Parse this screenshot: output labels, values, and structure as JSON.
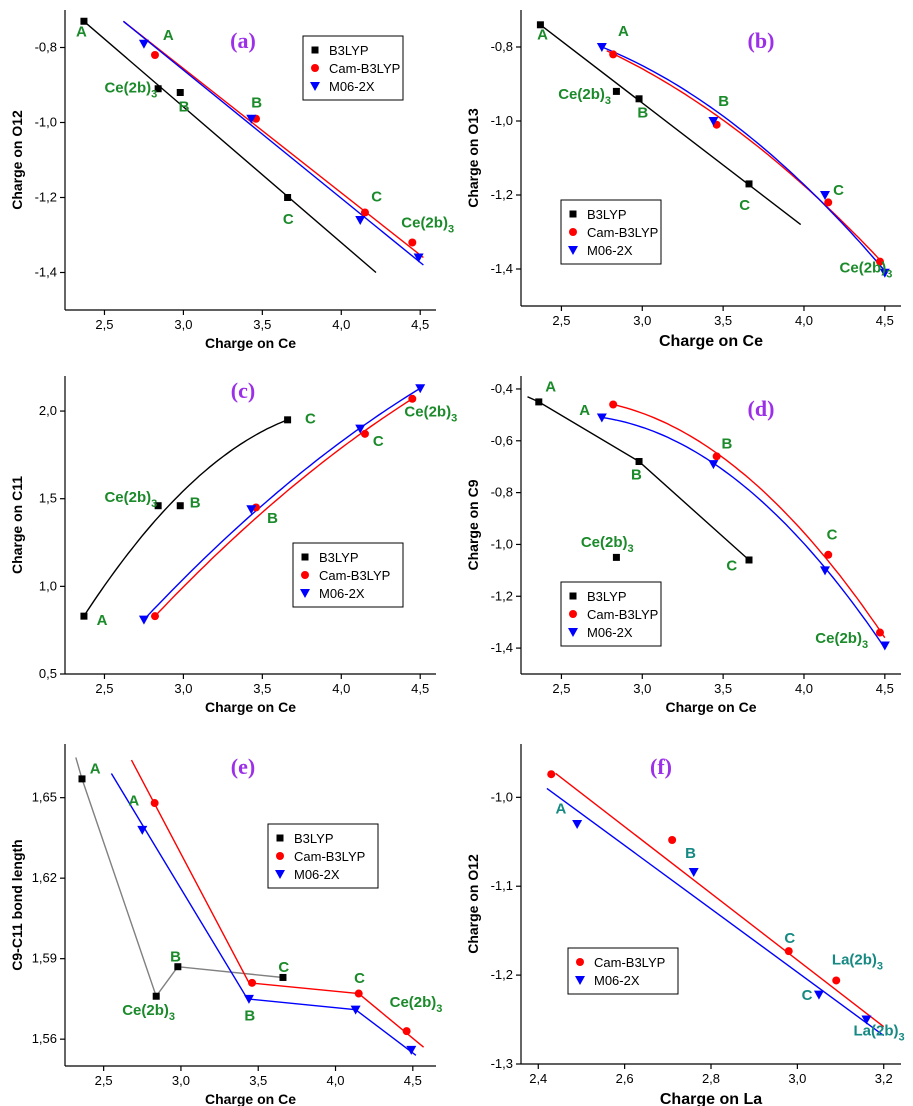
{
  "colors": {
    "B3LYP": "#000000",
    "Cam-B3LYP": "#ff0000",
    "M06-2X": "#0000ff",
    "tag": "#9b30e8",
    "ann": "#1b8a2a"
  },
  "chart_data": [
    {
      "type": "scatter",
      "panel": "(a)",
      "xlabel": "Charge on Ce",
      "ylabel": "Charge on O12",
      "xlim": [
        2.25,
        4.6
      ],
      "ylim": [
        -1.5,
        -0.7
      ],
      "xticks": [
        "2,5",
        "3,0",
        "3,5",
        "4,0",
        "4,5"
      ],
      "xtick_values": [
        2.5,
        3.0,
        3.5,
        4.0,
        4.5
      ],
      "yticks": [
        "-0,8",
        "-1,0",
        "-1,2",
        "-1,4"
      ],
      "ytick_values": [
        -0.8,
        -1.0,
        -1.2,
        -1.4
      ],
      "legend": [
        "B3LYP",
        "Cam-B3LYP",
        "M06-2X"
      ],
      "series": [
        {
          "name": "B3LYP",
          "marker": "square",
          "x": [
            2.37,
            2.84,
            2.98,
            3.66
          ],
          "y": [
            -0.73,
            -0.91,
            -0.92,
            -1.2
          ],
          "fit": {
            "kind": "line",
            "x": [
              2.37,
              4.22
            ],
            "y": [
              -0.73,
              -1.4
            ]
          }
        },
        {
          "name": "Cam-B3LYP",
          "marker": "circle",
          "x": [
            2.82,
            3.46,
            4.15,
            4.45
          ],
          "y": [
            -0.82,
            -0.99,
            -1.24,
            -1.32
          ],
          "fit": {
            "kind": "line",
            "x": [
              2.62,
              4.52
            ],
            "y": [
              -0.73,
              -1.36
            ]
          }
        },
        {
          "name": "M06-2X",
          "marker": "triangle",
          "x": [
            2.75,
            3.43,
            4.12,
            4.49
          ],
          "y": [
            -0.79,
            -0.99,
            -1.26,
            -1.36
          ],
          "fit": {
            "kind": "line",
            "x": [
              2.62,
              4.52
            ],
            "y": [
              -0.73,
              -1.38
            ]
          }
        }
      ],
      "annotations": [
        {
          "text": "A",
          "x": 2.32,
          "y": -0.77
        },
        {
          "text": "A",
          "x": 2.87,
          "y": -0.78
        },
        {
          "text": "Ce(2b)",
          "sub": "3",
          "x": 2.5,
          "y": -0.92
        },
        {
          "text": "B",
          "x": 2.97,
          "y": -0.97
        },
        {
          "text": "B",
          "x": 3.43,
          "y": -0.96
        },
        {
          "text": "C",
          "x": 3.63,
          "y": -1.27
        },
        {
          "text": "C",
          "x": 4.19,
          "y": -1.21
        },
        {
          "text": "Ce(2b)",
          "sub": "3",
          "x": 4.38,
          "y": -1.28
        }
      ]
    },
    {
      "type": "scatter",
      "panel": "(b)",
      "xlabel": "Charge on Ce",
      "ylabel": "Charge on O13",
      "xlim": [
        2.25,
        4.6
      ],
      "ylim": [
        -1.5,
        -0.7
      ],
      "xticks": [
        "2,5",
        "3,0",
        "3,5",
        "4,0",
        "4,5"
      ],
      "xtick_values": [
        2.5,
        3.0,
        3.5,
        4.0,
        4.5
      ],
      "yticks": [
        "-0,8",
        "-1,0",
        "-1,2",
        "-1,4"
      ],
      "ytick_values": [
        -0.8,
        -1.0,
        -1.2,
        -1.4
      ],
      "legend": [
        "B3LYP",
        "Cam-B3LYP",
        "M06-2X"
      ],
      "series": [
        {
          "name": "B3LYP",
          "marker": "square",
          "x": [
            2.37,
            2.84,
            2.98,
            3.66
          ],
          "y": [
            -0.74,
            -0.92,
            -0.94,
            -1.17
          ],
          "fit": {
            "kind": "line",
            "x": [
              2.37,
              3.98
            ],
            "y": [
              -0.74,
              -1.28
            ]
          }
        },
        {
          "name": "Cam-B3LYP",
          "marker": "circle",
          "x": [
            2.82,
            3.46,
            4.15,
            4.47
          ],
          "y": [
            -0.82,
            -1.01,
            -1.22,
            -1.38
          ],
          "fit": {
            "kind": "quad",
            "x": [
              2.78,
              3.6,
              4.48
            ],
            "y": [
              -0.81,
              -1.03,
              -1.38
            ]
          }
        },
        {
          "name": "M06-2X",
          "marker": "triangle",
          "x": [
            2.75,
            3.44,
            4.13,
            4.5
          ],
          "y": [
            -0.8,
            -1.0,
            -1.2,
            -1.41
          ],
          "fit": {
            "kind": "quad",
            "x": [
              2.75,
              3.6,
              4.49
            ],
            "y": [
              -0.8,
              -1.02,
              -1.4
            ]
          }
        }
      ],
      "annotations": [
        {
          "text": "A",
          "x": 2.35,
          "y": -0.78
        },
        {
          "text": "A",
          "x": 2.85,
          "y": -0.77
        },
        {
          "text": "Ce(2b)",
          "sub": "3",
          "x": 2.48,
          "y": -0.94
        },
        {
          "text": "B",
          "x": 2.97,
          "y": -0.99
        },
        {
          "text": "B",
          "x": 3.47,
          "y": -0.96
        },
        {
          "text": "C",
          "x": 3.6,
          "y": -1.24
        },
        {
          "text": "C",
          "x": 4.18,
          "y": -1.2
        },
        {
          "text": "Ce(2b)",
          "sub": "3",
          "x": 4.22,
          "y": -1.41
        }
      ]
    },
    {
      "type": "scatter",
      "panel": "(c)",
      "xlabel": "Charge on Ce",
      "ylabel": "Charge on C11",
      "xlim": [
        2.25,
        4.6
      ],
      "ylim": [
        0.5,
        2.2
      ],
      "xticks": [
        "2,5",
        "3,0",
        "3,5",
        "4,0",
        "4,5"
      ],
      "xtick_values": [
        2.5,
        3.0,
        3.5,
        4.0,
        4.5
      ],
      "yticks": [
        "0,5",
        "1,0",
        "1,5",
        "2,0"
      ],
      "ytick_values": [
        0.5,
        1.0,
        1.5,
        2.0
      ],
      "legend": [
        "B3LYP",
        "Cam-B3LYP",
        "M06-2X"
      ],
      "series": [
        {
          "name": "B3LYP",
          "marker": "square",
          "x": [
            2.37,
            2.84,
            2.98,
            3.66
          ],
          "y": [
            0.83,
            1.46,
            1.46,
            1.95
          ],
          "fit": {
            "kind": "quad",
            "x": [
              2.37,
              2.95,
              3.66
            ],
            "y": [
              0.83,
              1.5,
              1.95
            ]
          }
        },
        {
          "name": "Cam-B3LYP",
          "marker": "circle",
          "x": [
            2.82,
            3.46,
            4.15,
            4.45
          ],
          "y": [
            0.83,
            1.45,
            1.87,
            2.07
          ],
          "fit": {
            "kind": "quad",
            "x": [
              2.82,
              3.6,
              4.45
            ],
            "y": [
              0.83,
              1.5,
              2.07
            ]
          }
        },
        {
          "name": "M06-2X",
          "marker": "triangle",
          "x": [
            2.75,
            3.43,
            4.12,
            4.5
          ],
          "y": [
            0.81,
            1.44,
            1.9,
            2.13
          ],
          "fit": {
            "kind": "quad",
            "x": [
              2.75,
              3.6,
              4.5
            ],
            "y": [
              0.81,
              1.54,
              2.13
            ]
          }
        }
      ],
      "annotations": [
        {
          "text": "A",
          "x": 2.45,
          "y": 0.78
        },
        {
          "text": "Ce(2b)",
          "sub": "3",
          "x": 2.5,
          "y": 1.48
        },
        {
          "text": "B",
          "x": 3.04,
          "y": 1.45
        },
        {
          "text": "B",
          "x": 3.53,
          "y": 1.36
        },
        {
          "text": "C",
          "x": 3.77,
          "y": 1.93
        },
        {
          "text": "C",
          "x": 4.2,
          "y": 1.8
        },
        {
          "text": "Ce(2b)",
          "sub": "3",
          "x": 4.4,
          "y": 1.97
        }
      ]
    },
    {
      "type": "scatter",
      "panel": "(d)",
      "xlabel": "Charge on Ce",
      "ylabel": "Charge on C9",
      "xlim": [
        2.25,
        4.6
      ],
      "ylim": [
        -1.5,
        -0.35
      ],
      "xticks": [
        "2,5",
        "3,0",
        "3,5",
        "4,0",
        "4,5"
      ],
      "xtick_values": [
        2.5,
        3.0,
        3.5,
        4.0,
        4.5
      ],
      "yticks": [
        "-0,4",
        "-0,6",
        "-0,8",
        "-1,0",
        "-1,2",
        "-1,4"
      ],
      "ytick_values": [
        -0.4,
        -0.6,
        -0.8,
        -1.0,
        -1.2,
        -1.4
      ],
      "legend": [
        "B3LYP",
        "Cam-B3LYP",
        "M06-2X"
      ],
      "series": [
        {
          "name": "B3LYP",
          "marker": "square",
          "x": [
            2.36,
            2.98,
            3.66
          ],
          "y": [
            -0.45,
            -0.68,
            -1.06
          ],
          "fit": {
            "kind": "poly",
            "x": [
              2.29,
              2.36,
              2.98,
              3.66
            ],
            "y": [
              -0.43,
              -0.45,
              -0.68,
              -1.06
            ]
          }
        },
        {
          "name": "Cam-B3LYP",
          "marker": "circle",
          "x": [
            2.82,
            3.46,
            4.15,
            4.47
          ],
          "y": [
            -0.46,
            -0.66,
            -1.04,
            -1.34
          ],
          "fit": {
            "kind": "quad",
            "x": [
              2.82,
              3.65,
              4.5
            ],
            "y": [
              -0.46,
              -0.74,
              -1.36
            ]
          }
        },
        {
          "name": "M06-2X",
          "marker": "triangle",
          "x": [
            2.75,
            3.44,
            4.13,
            4.5
          ],
          "y": [
            -0.51,
            -0.69,
            -1.1,
            -1.39
          ],
          "fit": {
            "kind": "quad",
            "x": [
              2.75,
              3.6,
              4.5
            ],
            "y": [
              -0.51,
              -0.76,
              -1.4
            ]
          }
        },
        {
          "name": "B3LYP",
          "marker": "square",
          "x": [
            2.84
          ],
          "y": [
            -1.05
          ],
          "fit": null
        }
      ],
      "annotations": [
        {
          "text": "A",
          "x": 2.4,
          "y": -0.41
        },
        {
          "text": "A",
          "x": 2.61,
          "y": -0.5
        },
        {
          "text": "B",
          "x": 2.93,
          "y": -0.75
        },
        {
          "text": "B",
          "x": 3.49,
          "y": -0.63
        },
        {
          "text": "Ce(2b)",
          "sub": "3",
          "x": 2.62,
          "y": -1.01
        },
        {
          "text": "C",
          "x": 3.52,
          "y": -1.1
        },
        {
          "text": "C",
          "x": 4.14,
          "y": -0.98
        },
        {
          "text": "Ce(2b)",
          "sub": "3",
          "x": 4.07,
          "y": -1.38
        }
      ]
    },
    {
      "type": "line",
      "panel": "(e)",
      "xlabel": "Charge on Ce",
      "ylabel": "C9-C11 bond length",
      "xlim": [
        2.25,
        4.65
      ],
      "ylim": [
        1.55,
        1.67
      ],
      "xticks": [
        "2,5",
        "3,0",
        "3,5",
        "4,0",
        "4,5"
      ],
      "xtick_values": [
        2.5,
        3.0,
        3.5,
        4.0,
        4.5
      ],
      "yticks": [
        "1,56",
        "1,59",
        "1,62",
        "1,65"
      ],
      "ytick_values": [
        1.56,
        1.59,
        1.62,
        1.65
      ],
      "legend": [
        "B3LYP",
        "Cam-B3LYP",
        "M06-2X"
      ],
      "series": [
        {
          "name": "B3LYP",
          "marker": "square",
          "x": [
            2.36,
            2.84,
            2.98,
            3.66
          ],
          "y": [
            1.657,
            1.576,
            1.587,
            1.583
          ],
          "fit": {
            "kind": "poly",
            "x": [
              2.32,
              2.36,
              2.84,
              2.98,
              3.66
            ],
            "y": [
              1.665,
              1.657,
              1.576,
              1.587,
              1.583
            ],
            "color": "#808080"
          }
        },
        {
          "name": "Cam-B3LYP",
          "marker": "circle",
          "x": [
            2.83,
            3.46,
            4.15,
            4.46
          ],
          "y": [
            1.648,
            1.581,
            1.577,
            1.563
          ],
          "fit": {
            "kind": "poly",
            "x": [
              2.68,
              3.44,
              4.15,
              4.57
            ],
            "y": [
              1.664,
              1.581,
              1.577,
              1.557
            ]
          }
        },
        {
          "name": "M06-2X",
          "marker": "triangle",
          "x": [
            2.75,
            3.44,
            4.13,
            4.49
          ],
          "y": [
            1.638,
            1.575,
            1.571,
            1.556
          ],
          "fit": {
            "kind": "poly",
            "x": [
              2.55,
              3.43,
              4.13,
              4.52
            ],
            "y": [
              1.659,
              1.575,
              1.571,
              1.554
            ]
          }
        }
      ],
      "annotations": [
        {
          "text": "A",
          "x": 2.41,
          "y": 1.659
        },
        {
          "text": "A",
          "x": 2.66,
          "y": 1.647
        },
        {
          "text": "B",
          "x": 2.93,
          "y": 1.589
        },
        {
          "text": "Ce(2b)",
          "sub": "3",
          "x": 2.62,
          "y": 1.569
        },
        {
          "text": "B",
          "x": 3.41,
          "y": 1.567
        },
        {
          "text": "C",
          "x": 3.63,
          "y": 1.585
        },
        {
          "text": "C",
          "x": 4.12,
          "y": 1.581
        },
        {
          "text": "Ce(2b)",
          "sub": "3",
          "x": 4.35,
          "y": 1.572
        }
      ]
    },
    {
      "type": "scatter",
      "panel": "(f)",
      "xlabel": "Charge on La",
      "ylabel": "Charge on O12",
      "xlim": [
        2.36,
        3.24
      ],
      "ylim": [
        -1.3,
        -0.94
      ],
      "xticks": [
        "2,4",
        "2,6",
        "2,8",
        "3,0",
        "3,2"
      ],
      "xtick_values": [
        2.4,
        2.6,
        2.8,
        3.0,
        3.2
      ],
      "yticks": [
        "-1,0",
        "-1,1",
        "-1,2",
        "-1,3"
      ],
      "ytick_values": [
        -1.0,
        -1.1,
        -1.2,
        -1.3
      ],
      "legend": [
        "Cam-B3LYP",
        "M06-2X"
      ],
      "series": [
        {
          "name": "Cam-B3LYP",
          "marker": "circle",
          "x": [
            2.43,
            2.71,
            2.98,
            3.09
          ],
          "y": [
            -0.974,
            -1.048,
            -1.173,
            -1.206
          ],
          "fit": {
            "kind": "line",
            "x": [
              2.44,
              3.2
            ],
            "y": [
              -0.973,
              -1.258
            ]
          }
        },
        {
          "name": "M06-2X",
          "marker": "triangle",
          "x": [
            2.49,
            2.76,
            3.05,
            3.16
          ],
          "y": [
            -1.03,
            -1.084,
            -1.222,
            -1.25
          ],
          "fit": {
            "kind": "line",
            "x": [
              2.42,
              3.2
            ],
            "y": [
              -0.99,
              -1.268
            ]
          }
        }
      ],
      "annotations": [
        {
          "text": "A",
          "x": 2.44,
          "y": -1.018,
          "teal": true
        },
        {
          "text": "B",
          "x": 2.74,
          "y": -1.068,
          "teal": true
        },
        {
          "text": "C",
          "x": 2.97,
          "y": -1.164,
          "teal": true
        },
        {
          "text": "La(2b)",
          "sub": "3",
          "x": 3.08,
          "y": -1.188,
          "teal": true
        },
        {
          "text": "C",
          "x": 3.01,
          "y": -1.228,
          "teal": true
        },
        {
          "text": "La(2b)",
          "sub": "3",
          "x": 3.13,
          "y": -1.268,
          "teal": true
        }
      ]
    }
  ]
}
